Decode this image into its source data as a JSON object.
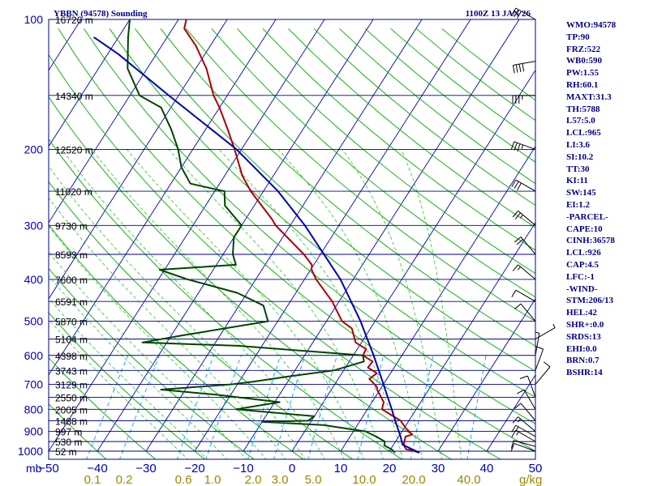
{
  "header": {
    "station": "YBBN (94578) Sounding",
    "time": "1100Z 13 JAN 26"
  },
  "indices": [
    "WMO:94578",
    "TP:90",
    "FRZ:522",
    "WB0:590",
    "PW:1.55",
    "RH:60.1",
    "MAXT:31.3",
    "TH:5788",
    "L57:5.0",
    "LCL:965",
    "LI:3.6",
    "SI:10.2",
    "TT:30",
    "KI:11",
    "SW:145",
    "EI:1.2",
    "-PARCEL-",
    "CAPE:10",
    "CINH:36578",
    "LCL:926",
    "CAP:4.5",
    "LFC:-1",
    "-WIND-",
    "STM:206/13",
    "HEL:42",
    "SHR+:0.0",
    "SRDS:13",
    "EHI:0.0",
    "BRN:0.7",
    "BSHR:14"
  ],
  "chart_data": {
    "type": "line",
    "title": "YBBN (94578) Sounding",
    "subtitle": "1100Z 13 JAN 26",
    "xlabel": "",
    "ylabel": "mb",
    "x_axis": {
      "unit": "°C",
      "min": -50,
      "max": 50,
      "ticks": [
        -50,
        -40,
        -30,
        -20,
        -10,
        0,
        10,
        20,
        30,
        40,
        50
      ]
    },
    "y_axis": {
      "unit": "mb",
      "scale": "log",
      "range": [
        1000,
        100
      ],
      "ticks": [
        100,
        200,
        300,
        400,
        500,
        600,
        700,
        800,
        900,
        1000
      ]
    },
    "mixing_ratio_axis": {
      "unit": "g/kg",
      "ticks": [
        "0.1",
        "0.2",
        "0.6",
        "1.0",
        "2.0",
        "3.0",
        "5.0",
        "10.0",
        "20.0",
        "40.0"
      ]
    },
    "pressure_label": "mb",
    "tick_labels": {
      "temperature": [
        "−50",
        "−40",
        "−30",
        "−20",
        "−10",
        "0",
        "10",
        "20",
        "30",
        "40",
        "50"
      ],
      "pressure": [
        "100",
        "200",
        "300",
        "400",
        "500",
        "600",
        "700",
        "800",
        "900",
        "1000"
      ],
      "mixing_ratio": [
        "0.1",
        "0.2",
        "0.6",
        "1.0",
        "2.0",
        "3.0",
        "5.0",
        "10.0",
        "20.0",
        "40.0"
      ]
    },
    "mixing_ratio_unit_label": "g/kg",
    "heights": [
      {
        "p": 100,
        "label": "16720 m"
      },
      {
        "p": 150,
        "label": "14340 m"
      },
      {
        "p": 200,
        "label": "12520 m"
      },
      {
        "p": 250,
        "label": "11020 m"
      },
      {
        "p": 300,
        "label": "9730 m"
      },
      {
        "p": 350,
        "label": "8593 m"
      },
      {
        "p": 400,
        "label": "7600 m"
      },
      {
        "p": 450,
        "label": "6591 m"
      },
      {
        "p": 500,
        "label": "5870 m"
      },
      {
        "p": 550,
        "label": "5104 m"
      },
      {
        "p": 600,
        "label": "4398 m"
      },
      {
        "p": 650,
        "label": "3743 m"
      },
      {
        "p": 700,
        "label": "3129 m"
      },
      {
        "p": 750,
        "label": "2550 m"
      },
      {
        "p": 800,
        "label": "2005 m"
      },
      {
        "p": 850,
        "label": "1488 m"
      },
      {
        "p": 900,
        "label": "997 m"
      },
      {
        "p": 950,
        "label": "530 m"
      },
      {
        "p": 1000,
        "label": "52 m"
      }
    ],
    "series": [
      {
        "role": "temperature",
        "color": "#aa0000",
        "points": [
          [
            1008,
            26.3
          ],
          [
            995,
            24.4
          ],
          [
            990,
            23.2
          ],
          [
            970,
            22.2
          ],
          [
            950,
            21.8
          ],
          [
            925,
            21.4
          ],
          [
            915,
            22.5
          ],
          [
            885,
            20.4
          ],
          [
            850,
            18.3
          ],
          [
            800,
            13.0
          ],
          [
            770,
            12.4
          ],
          [
            720,
            9.4
          ],
          [
            710,
            9.0
          ],
          [
            680,
            6.4
          ],
          [
            660,
            7.2
          ],
          [
            640,
            4.6
          ],
          [
            620,
            4.8
          ],
          [
            600,
            2.0
          ],
          [
            580,
            1.8
          ],
          [
            560,
            -1.2
          ],
          [
            520,
            -3.8
          ],
          [
            500,
            -6.8
          ],
          [
            450,
            -11.4
          ],
          [
            400,
            -17.6
          ],
          [
            380,
            -19.8
          ],
          [
            370,
            -20.4
          ],
          [
            350,
            -23.4
          ],
          [
            300,
            -33.0
          ],
          [
            290,
            -34.6
          ],
          [
            250,
            -42.6
          ],
          [
            230,
            -46.4
          ],
          [
            200,
            -51.4
          ],
          [
            180,
            -55.4
          ],
          [
            160,
            -60.0
          ],
          [
            150,
            -62.8
          ],
          [
            130,
            -67.8
          ],
          [
            115,
            -73.0
          ],
          [
            105,
            -77.6
          ],
          [
            100,
            -78.4
          ]
        ]
      },
      {
        "role": "dewpoint",
        "color": "#004400",
        "points": [
          [
            1008,
            21.3
          ],
          [
            990,
            20.2
          ],
          [
            970,
            18.2
          ],
          [
            950,
            17.8
          ],
          [
            925,
            15.4
          ],
          [
            900,
            12.5
          ],
          [
            870,
            3.0
          ],
          [
            855,
            -10.0
          ],
          [
            850,
            -0.7
          ],
          [
            830,
            0.0
          ],
          [
            800,
            -17.0
          ],
          [
            770,
            -9.0
          ],
          [
            740,
            -23.0
          ],
          [
            720,
            -35.0
          ],
          [
            700,
            -21.0
          ],
          [
            690,
            -17.0
          ],
          [
            670,
            -10.0
          ],
          [
            650,
            -2.0
          ],
          [
            620,
            3.0
          ],
          [
            600,
            2.0
          ],
          [
            570,
            -25.0
          ],
          [
            560,
            -45.0
          ],
          [
            540,
            -38.0
          ],
          [
            500,
            -22.0
          ],
          [
            460,
            -25.0
          ],
          [
            430,
            -32.0
          ],
          [
            400,
            -44.0
          ],
          [
            380,
            -51.0
          ],
          [
            370,
            -36.0
          ],
          [
            350,
            -38.0
          ],
          [
            320,
            -40.0
          ],
          [
            300,
            -40.0
          ],
          [
            270,
            -46.0
          ],
          [
            250,
            -48.0
          ],
          [
            240,
            -56.0
          ],
          [
            220,
            -60.0
          ],
          [
            200,
            -63.0
          ],
          [
            180,
            -67.0
          ],
          [
            160,
            -72.0
          ],
          [
            150,
            -78.0
          ],
          [
            130,
            -84.0
          ],
          [
            110,
            -88.0
          ],
          [
            100,
            -90.0
          ]
        ]
      },
      {
        "role": "parcel",
        "color": "#0000aa",
        "points": [
          [
            1008,
            26.3
          ],
          [
            965,
            21.8
          ],
          [
            926,
            20.4
          ],
          [
            850,
            17.2
          ],
          [
            800,
            15.0
          ],
          [
            700,
            10.0
          ],
          [
            600,
            4.2
          ],
          [
            500,
            -3.0
          ],
          [
            400,
            -12.6
          ],
          [
            300,
            -27.0
          ],
          [
            250,
            -37.0
          ],
          [
            200,
            -51.0
          ],
          [
            150,
            -72.0
          ],
          [
            120,
            -88.0
          ],
          [
            110,
            -95.0
          ]
        ]
      }
    ],
    "wind_barbs": [
      {
        "p": 1000,
        "dir": 290,
        "kt": 10
      },
      {
        "p": 975,
        "dir": 285,
        "kt": 10
      },
      {
        "p": 950,
        "dir": 300,
        "kt": 15
      },
      {
        "p": 925,
        "dir": 300,
        "kt": 15
      },
      {
        "p": 900,
        "dir": 310,
        "kt": 15
      },
      {
        "p": 850,
        "dir": 320,
        "kt": 10
      },
      {
        "p": 800,
        "dir": 330,
        "kt": 10
      },
      {
        "p": 750,
        "dir": 340,
        "kt": 10
      },
      {
        "p": 700,
        "dir": 40,
        "kt": 10
      },
      {
        "p": 650,
        "dir": 20,
        "kt": 10
      },
      {
        "p": 600,
        "dir": 10,
        "kt": 5
      },
      {
        "p": 550,
        "dir": 60,
        "kt": 5
      },
      {
        "p": 500,
        "dir": 320,
        "kt": 10
      },
      {
        "p": 450,
        "dir": 300,
        "kt": 10
      },
      {
        "p": 400,
        "dir": 310,
        "kt": 15
      },
      {
        "p": 350,
        "dir": 320,
        "kt": 20
      },
      {
        "p": 300,
        "dir": 310,
        "kt": 25
      },
      {
        "p": 250,
        "dir": 300,
        "kt": 30
      },
      {
        "p": 200,
        "dir": 290,
        "kt": 35
      },
      {
        "p": 150,
        "dir": 270,
        "kt": 35
      },
      {
        "p": 125,
        "dir": 260,
        "kt": 40
      },
      {
        "p": 100,
        "dir": 300,
        "kt": 30
      }
    ],
    "grid": true,
    "legend": "none",
    "colors": {
      "isobar": "#000080",
      "isotherm": "#0000aa",
      "dry_adiabat": "#00aa00",
      "moist_adiabat": "#22cc22",
      "mixing_ratio": "#00a0ff",
      "label_text": "#0000aa",
      "mixing_ratio_text": "#a08400"
    }
  }
}
